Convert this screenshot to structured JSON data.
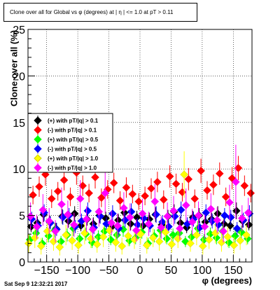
{
  "chart_data": {
    "type": "scatter",
    "title": "Clone  over all for Global vs φ (degrees) at | η | <= 1.0 at pT > 0.11",
    "xlabel": "φ (degrees)",
    "ylabel": "Clone  over all (%)",
    "xlim": [
      -180,
      180
    ],
    "ylim": [
      0,
      25
    ],
    "xticks": [
      -150,
      -100,
      -50,
      0,
      50,
      100,
      150
    ],
    "yticks": [
      0,
      5,
      10,
      15,
      20,
      25
    ],
    "grid": true,
    "legend_position": "middle-left",
    "series": [
      {
        "name": "(+) with pT/|q| > 0.1",
        "color": "#000000",
        "marker": "diamond",
        "x": [
          -175,
          -165,
          -155,
          -145,
          -135,
          -125,
          -115,
          -105,
          -95,
          -85,
          -75,
          -65,
          -55,
          -45,
          -35,
          -25,
          -15,
          -5,
          5,
          15,
          25,
          35,
          45,
          55,
          65,
          75,
          85,
          95,
          105,
          115,
          125,
          135,
          145,
          155,
          165,
          175
        ],
        "y": [
          3.8,
          4.2,
          5.1,
          4.3,
          3.6,
          4.9,
          4.4,
          5.2,
          3.9,
          4.6,
          4.1,
          5.0,
          4.7,
          3.8,
          4.5,
          5.3,
          4.1,
          4.8,
          3.9,
          4.6,
          5.1,
          4.0,
          4.9,
          5.4,
          4.2,
          3.7,
          4.8,
          5.0,
          4.3,
          4.6,
          5.2,
          4.1,
          3.9,
          5.5,
          4.4,
          4.0
        ],
        "err": [
          0.6,
          0.7,
          0.8,
          0.7,
          0.6,
          0.8,
          0.7,
          0.8,
          0.6,
          0.7,
          0.7,
          0.8,
          0.7,
          0.6,
          0.7,
          0.8,
          0.7,
          0.7,
          0.6,
          0.7,
          0.8,
          0.6,
          0.7,
          0.8,
          0.7,
          0.6,
          0.7,
          0.8,
          0.7,
          0.7,
          0.8,
          0.6,
          0.6,
          0.9,
          0.7,
          0.6
        ]
      },
      {
        "name": "(-) with pT/|q| > 0.1",
        "color": "#ff0000",
        "marker": "diamond",
        "x": [
          -172,
          -162,
          -152,
          -142,
          -132,
          -122,
          -112,
          -102,
          -92,
          -82,
          -72,
          -62,
          -52,
          -42,
          -32,
          -22,
          -12,
          -2,
          8,
          18,
          28,
          38,
          48,
          58,
          68,
          78,
          88,
          98,
          108,
          118,
          128,
          138,
          148,
          158,
          168,
          178
        ],
        "y": [
          7.2,
          8.1,
          9.4,
          6.8,
          7.6,
          8.8,
          7.0,
          9.6,
          8.2,
          7.4,
          9.1,
          6.9,
          7.8,
          8.5,
          6.6,
          8.0,
          7.3,
          6.5,
          7.1,
          7.9,
          8.6,
          6.7,
          9.2,
          8.4,
          7.5,
          8.9,
          6.8,
          9.8,
          7.7,
          8.3,
          9.5,
          7.0,
          9.0,
          10.1,
          8.2,
          7.4
        ],
        "err": [
          1.0,
          1.1,
          1.2,
          1.0,
          1.0,
          1.1,
          1.0,
          1.3,
          1.1,
          1.0,
          1.2,
          1.0,
          1.0,
          1.1,
          1.0,
          1.1,
          1.0,
          0.9,
          1.0,
          1.1,
          1.1,
          1.0,
          1.2,
          1.1,
          1.0,
          1.2,
          1.0,
          1.3,
          1.0,
          1.1,
          1.2,
          1.0,
          1.2,
          1.3,
          1.1,
          1.0
        ]
      },
      {
        "name": "(+) with pT/|q| > 0.5",
        "color": "#00ff00",
        "marker": "diamond",
        "x": [
          -177,
          -167,
          -157,
          -147,
          -137,
          -127,
          -117,
          -107,
          -97,
          -87,
          -77,
          -67,
          -57,
          -47,
          -37,
          -27,
          -17,
          -7,
          3,
          13,
          23,
          33,
          43,
          53,
          63,
          73,
          83,
          93,
          103,
          113,
          123,
          133,
          143,
          153,
          163,
          173
        ],
        "y": [
          2.4,
          3.1,
          2.0,
          2.8,
          3.4,
          2.2,
          2.9,
          3.6,
          2.5,
          3.0,
          2.1,
          2.7,
          3.3,
          2.4,
          2.9,
          3.5,
          2.3,
          2.6,
          3.2,
          2.0,
          2.8,
          3.4,
          2.5,
          2.9,
          3.1,
          2.2,
          2.7,
          3.6,
          2.4,
          3.0,
          2.6,
          3.3,
          2.1,
          2.8,
          3.2,
          2.5
        ],
        "err": [
          0.6,
          0.7,
          0.6,
          0.7,
          0.8,
          0.6,
          0.7,
          0.8,
          0.6,
          0.7,
          0.6,
          0.7,
          0.8,
          0.6,
          0.7,
          0.8,
          0.6,
          0.7,
          0.7,
          0.6,
          0.7,
          0.8,
          0.6,
          0.7,
          0.7,
          0.6,
          0.7,
          0.8,
          0.6,
          0.7,
          0.7,
          0.8,
          0.6,
          0.7,
          0.7,
          0.6
        ]
      },
      {
        "name": "(-) with pT/|q| > 0.5",
        "color": "#0000ff",
        "marker": "diamond",
        "x": [
          -174,
          -164,
          -154,
          -144,
          -134,
          -124,
          -114,
          -104,
          -94,
          -84,
          -74,
          -64,
          -54,
          -44,
          -34,
          -24,
          -14,
          -4,
          6,
          16,
          26,
          36,
          46,
          56,
          66,
          76,
          86,
          96,
          106,
          116,
          126,
          136,
          146,
          156,
          166,
          176
        ],
        "y": [
          4.6,
          3.9,
          5.3,
          4.2,
          3.5,
          4.8,
          5.0,
          3.8,
          4.4,
          5.5,
          3.7,
          4.9,
          4.1,
          5.2,
          3.6,
          4.5,
          5.4,
          4.0,
          4.7,
          3.9,
          5.1,
          4.3,
          3.8,
          4.9,
          5.6,
          4.1,
          4.6,
          3.7,
          5.3,
          4.4,
          4.0,
          5.0,
          4.8,
          3.6,
          4.5,
          5.2
        ],
        "err": [
          0.8,
          0.7,
          0.9,
          0.7,
          0.7,
          0.8,
          0.8,
          0.7,
          0.8,
          0.9,
          0.7,
          0.8,
          0.7,
          0.9,
          0.7,
          0.8,
          0.9,
          0.7,
          0.8,
          0.7,
          0.9,
          0.7,
          0.7,
          0.8,
          0.9,
          0.7,
          0.8,
          0.7,
          0.9,
          0.8,
          0.7,
          0.8,
          0.8,
          0.7,
          0.8,
          0.9
        ]
      },
      {
        "name": "(+) with pT/|q| > 1.0",
        "color": "#ffff00",
        "marker": "diamond",
        "x": [
          -179,
          -169,
          -159,
          -149,
          -139,
          -129,
          -119,
          -109,
          -99,
          -89,
          -79,
          -69,
          -59,
          -49,
          -39,
          -29,
          -19,
          -9,
          1,
          11,
          21,
          31,
          41,
          51,
          61,
          71,
          81,
          91,
          101,
          111,
          121,
          131,
          141,
          151,
          161,
          171
        ],
        "y": [
          2.0,
          2.6,
          1.7,
          3.3,
          2.2,
          1.6,
          2.9,
          2.3,
          1.8,
          3.1,
          2.5,
          1.9,
          2.7,
          3.4,
          2.1,
          1.7,
          2.8,
          2.4,
          3.0,
          1.8,
          2.6,
          2.2,
          3.2,
          1.9,
          2.5,
          9.4,
          2.0,
          2.9,
          1.7,
          2.4,
          3.1,
          2.1,
          2.7,
          1.8,
          2.3,
          2.9
        ],
        "err": [
          1.0,
          1.1,
          0.9,
          1.2,
          1.0,
          0.9,
          1.1,
          1.0,
          0.9,
          1.2,
          1.0,
          0.9,
          1.1,
          1.2,
          1.0,
          0.9,
          1.1,
          1.0,
          1.1,
          0.9,
          1.0,
          1.0,
          1.2,
          0.9,
          1.0,
          2.5,
          0.9,
          1.1,
          0.9,
          1.0,
          1.1,
          1.0,
          1.1,
          0.9,
          1.0,
          1.1
        ]
      },
      {
        "name": "(-) with pT/|q| > 1.0",
        "color": "#ff00ff",
        "marker": "diamond",
        "x": [
          -176,
          -166,
          -156,
          -146,
          -136,
          -126,
          -116,
          -106,
          -96,
          -86,
          -76,
          -66,
          -56,
          -46,
          -36,
          -26,
          -16,
          -6,
          4,
          14,
          24,
          34,
          44,
          54,
          64,
          74,
          84,
          94,
          104,
          114,
          124,
          134,
          144,
          154,
          164,
          174
        ],
        "y": [
          4.9,
          3.8,
          5.6,
          4.4,
          3.3,
          6.2,
          5.1,
          4.0,
          6.8,
          4.6,
          3.5,
          5.4,
          7.4,
          4.2,
          3.9,
          5.8,
          4.8,
          3.4,
          5.2,
          4.1,
          6.5,
          3.7,
          4.9,
          5.5,
          3.6,
          6.1,
          4.3,
          5.0,
          3.8,
          5.7,
          4.5,
          3.3,
          6.4,
          8.6,
          4.7,
          5.3
        ],
        "err": [
          1.5,
          1.3,
          1.7,
          1.4,
          1.2,
          1.8,
          1.5,
          1.3,
          2.0,
          1.4,
          1.2,
          1.6,
          2.2,
          1.3,
          1.3,
          1.7,
          1.5,
          1.2,
          1.6,
          1.3,
          1.9,
          1.2,
          1.5,
          1.6,
          1.2,
          1.8,
          1.4,
          1.5,
          1.3,
          1.7,
          1.4,
          1.2,
          1.9,
          4.0,
          1.4,
          1.6
        ]
      }
    ]
  },
  "footer": {
    "timestamp": "Sat Sep  9 12:32:21 2017"
  }
}
